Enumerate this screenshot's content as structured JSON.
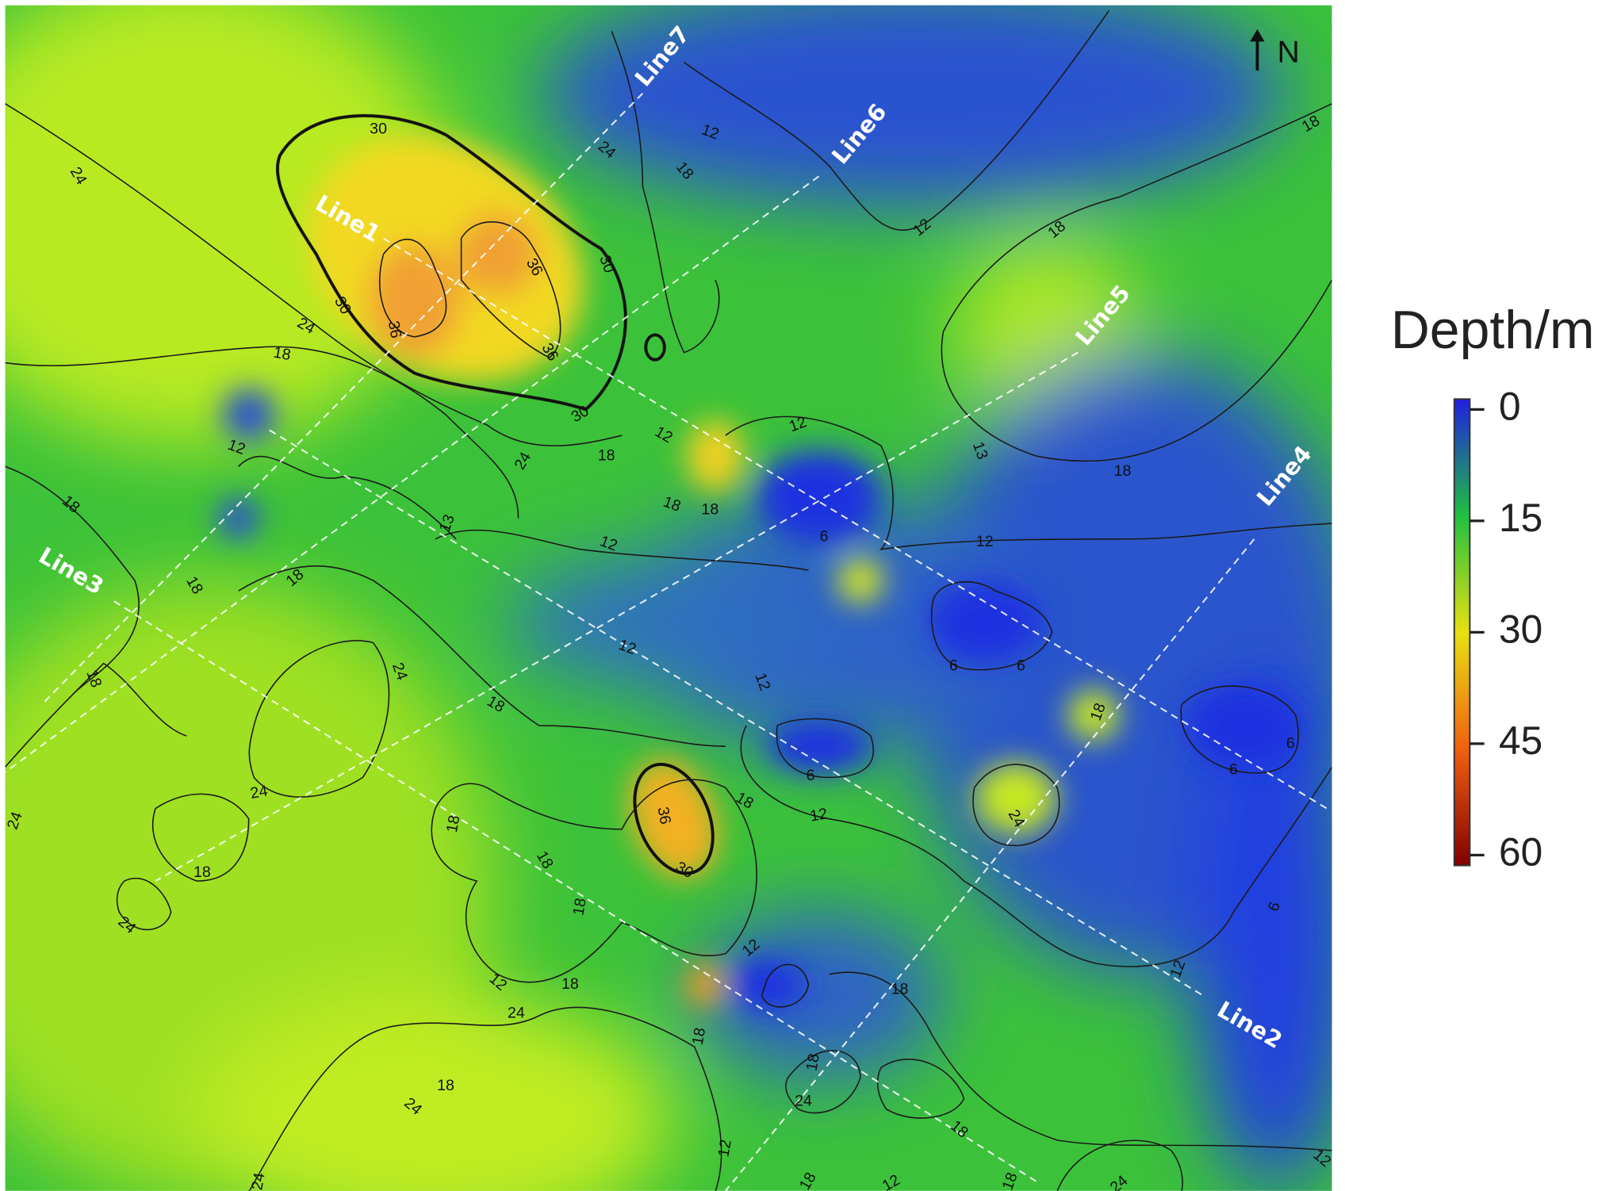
{
  "map": {
    "north_label": "N",
    "survey_lines": [
      "Line1",
      "Line2",
      "Line3",
      "Line4",
      "Line5",
      "Line6",
      "Line7"
    ],
    "contour_labels": [
      30,
      30,
      24,
      24,
      36,
      36,
      36,
      30,
      30,
      24,
      18,
      12,
      12,
      18,
      18,
      18,
      12,
      12,
      24,
      18,
      18,
      18,
      12,
      18,
      13,
      6,
      12,
      12,
      18,
      18,
      18,
      12,
      12,
      6,
      6,
      18,
      6,
      6,
      24,
      18,
      24,
      18,
      36,
      30,
      18,
      12,
      6,
      24,
      18,
      24,
      18,
      18,
      18,
      12,
      24,
      12,
      18,
      18,
      18,
      24,
      18,
      24,
      18,
      12,
      6,
      12,
      24,
      24,
      18,
      18,
      12,
      12,
      24,
      18,
      13
    ]
  },
  "colorbar": {
    "title": "Depth/m",
    "range": [
      0,
      60
    ],
    "ticks": [
      0,
      15,
      30,
      45,
      60
    ],
    "colors": [
      "#2020e0",
      "#20c040",
      "#e8e010",
      "#f06010",
      "#800000"
    ]
  }
}
